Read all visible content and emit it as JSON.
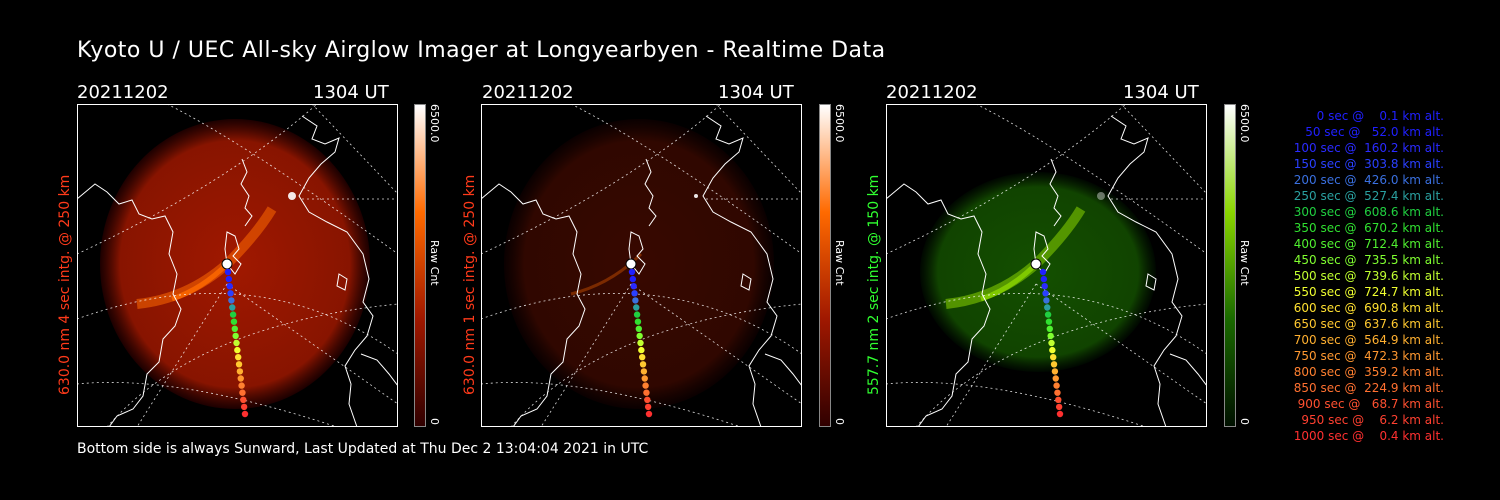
{
  "title": "Kyoto U / UEC All-sky Airglow Imager at Longyearbyen - Realtime Data",
  "panels": [
    {
      "date": "20211202",
      "time": "1304 UT",
      "side_label": "630.0 nm 4 sec intg. @ 250 km",
      "side_color": "#ff3a1a",
      "cbar_max": "6500.0",
      "cbar_unit": "Raw Cnt",
      "cbar_min": "0",
      "colormap": [
        "#300000",
        "#a01800",
        "#ff6a00",
        "#ffffff"
      ],
      "brightness": "high"
    },
    {
      "date": "20211202",
      "time": "1304 UT",
      "side_label": "630.0 nm 1 sec intg. @ 250 km",
      "side_color": "#ff3a1a",
      "cbar_max": "6500.0",
      "cbar_unit": "Raw Cnt",
      "cbar_min": "0",
      "colormap": [
        "#300000",
        "#a01800",
        "#ff6a00",
        "#ffffff"
      ],
      "brightness": "low"
    },
    {
      "date": "20211202",
      "time": "1304 UT",
      "side_label": "557.7 nm 2 sec intg. @ 150 km",
      "side_color": "#30ff30",
      "cbar_max": "6500.0",
      "cbar_unit": "Raw Cnt",
      "cbar_min": "0",
      "colormap": [
        "#001000",
        "#1a6a00",
        "#8ad600",
        "#ffffff"
      ],
      "brightness": "medium"
    }
  ],
  "footer": "Bottom side is always Sunward, Last Updated at Thu Dec  2 13:04:04 2021 in UTC",
  "trajectory_legend": [
    {
      "text": "   0 sec @    0.1 km alt.",
      "color": "#2020ff"
    },
    {
      "text": "  50 sec @   52.0 km alt.",
      "color": "#2020ff"
    },
    {
      "text": " 100 sec @  160.2 km alt.",
      "color": "#2a2aff"
    },
    {
      "text": " 150 sec @  303.8 km alt.",
      "color": "#2a40ff"
    },
    {
      "text": " 200 sec @  426.0 km alt.",
      "color": "#3a70e0"
    },
    {
      "text": " 250 sec @  527.4 km alt.",
      "color": "#2aa0a0"
    },
    {
      "text": " 300 sec @  608.6 km alt.",
      "color": "#20d040"
    },
    {
      "text": " 350 sec @  670.2 km alt.",
      "color": "#30e030"
    },
    {
      "text": " 400 sec @  712.4 km alt.",
      "color": "#50f030"
    },
    {
      "text": " 450 sec @  735.5 km alt.",
      "color": "#80ff30"
    },
    {
      "text": " 500 sec @  739.6 km alt.",
      "color": "#c0ff30"
    },
    {
      "text": " 550 sec @  724.7 km alt.",
      "color": "#f0ff30"
    },
    {
      "text": " 600 sec @  690.8 km alt.",
      "color": "#ffe030"
    },
    {
      "text": " 650 sec @  637.6 km alt.",
      "color": "#ffc830"
    },
    {
      "text": " 700 sec @  564.9 km alt.",
      "color": "#ffb030"
    },
    {
      "text": " 750 sec @  472.3 km alt.",
      "color": "#ff9830"
    },
    {
      "text": " 800 sec @  359.2 km alt.",
      "color": "#ff8030"
    },
    {
      "text": " 850 sec @  224.9 km alt.",
      "color": "#ff7030"
    },
    {
      "text": " 900 sec @   68.7 km alt.",
      "color": "#ff5030"
    },
    {
      "text": " 950 sec @    6.2 km alt.",
      "color": "#ff4030"
    },
    {
      "text": "1000 sec @    0.4 km alt.",
      "color": "#ff3030"
    }
  ]
}
